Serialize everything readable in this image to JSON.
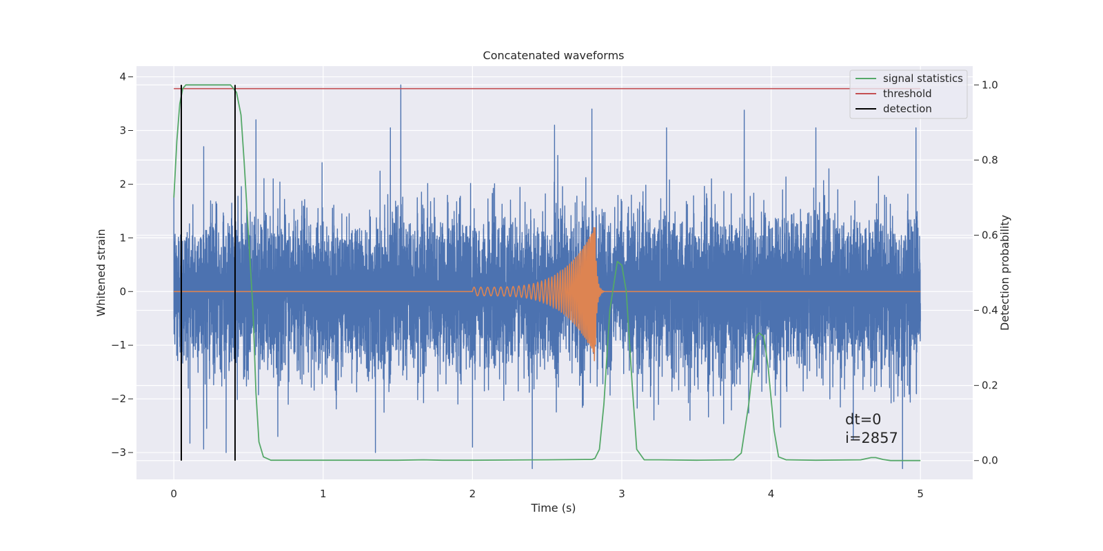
{
  "chart_data": {
    "type": "line",
    "title": "Concatenated waveforms",
    "xlabel": "Time (s)",
    "ylabel": "Whitened strain",
    "y2label": "Detection probability",
    "xlim": [
      -0.25,
      5.35
    ],
    "ylim": [
      -3.5,
      4.2
    ],
    "y2lim": [
      -0.05,
      1.05
    ],
    "xticks": [
      "0",
      "1",
      "2",
      "3",
      "4",
      "5"
    ],
    "yticks": [
      "−3",
      "−2",
      "−1",
      "0",
      "1",
      "2",
      "3",
      "4"
    ],
    "y2ticks": [
      "0.0",
      "0.2",
      "0.4",
      "0.6",
      "0.8",
      "1.0"
    ],
    "grid": true,
    "legend_position": "top-right",
    "legend": [
      {
        "label": "signal statistics",
        "color": "#55a868"
      },
      {
        "label": "threshold",
        "color": "#c44e52"
      },
      {
        "label": "detection",
        "color": "#000000"
      }
    ],
    "colors": {
      "noise": "#4c72b0",
      "waveform": "#dd8452",
      "signal_statistics": "#55a868",
      "threshold": "#c44e52",
      "detection": "#000000",
      "plot_background": "#eaeaf2",
      "grid": "#ffffff"
    },
    "series": [
      {
        "role": "noise",
        "axis": "left",
        "x_range": [
          0,
          5
        ],
        "sigma": 0.7,
        "peaks": [
          {
            "x": 0.0,
            "y": 1.75
          },
          {
            "x": 0.2,
            "y": 2.7
          },
          {
            "x": 0.55,
            "y": 3.2
          },
          {
            "x": 1.45,
            "y": 3.05
          },
          {
            "x": 1.52,
            "y": 3.85
          },
          {
            "x": 2.55,
            "y": 3.1
          },
          {
            "x": 2.8,
            "y": 3.4
          },
          {
            "x": 3.3,
            "y": 3.05
          },
          {
            "x": 3.82,
            "y": 3.38
          },
          {
            "x": 4.3,
            "y": 3.05
          },
          {
            "x": 4.97,
            "y": 3.05
          },
          {
            "x": 0.22,
            "y": -2.55
          },
          {
            "x": 0.35,
            "y": -3.0
          },
          {
            "x": 1.35,
            "y": -3.0
          },
          {
            "x": 2.0,
            "y": -2.9
          },
          {
            "x": 2.4,
            "y": -3.3
          },
          {
            "x": 4.55,
            "y": -2.75
          },
          {
            "x": 4.88,
            "y": -3.3
          }
        ]
      },
      {
        "role": "waveform",
        "axis": "left",
        "x_range": [
          0,
          5
        ],
        "chirp_start": 2.0,
        "merger": 2.82,
        "amp_start": 0.08,
        "amp_peak": 1.2,
        "amp_min": -1.3,
        "freq_start_hz": 22,
        "freq_end_hz": 120
      },
      {
        "name": "signal statistics",
        "axis": "right",
        "x": [
          0.0,
          0.02,
          0.04,
          0.06,
          0.08,
          0.1,
          0.2,
          0.3,
          0.38,
          0.42,
          0.45,
          0.47,
          0.5,
          0.53,
          0.55,
          0.57,
          0.6,
          0.65,
          0.75,
          1.0,
          1.5,
          1.67,
          1.8,
          2.0,
          2.5,
          2.75,
          2.8,
          2.82,
          2.85,
          2.88,
          2.92,
          2.97,
          3.0,
          3.03,
          3.07,
          3.1,
          3.15,
          3.25,
          3.5,
          3.75,
          3.8,
          3.85,
          3.9,
          3.92,
          3.95,
          3.98,
          4.02,
          4.05,
          4.1,
          4.3,
          4.6,
          4.67,
          4.7,
          4.75,
          4.8,
          5.0
        ],
        "y": [
          0.7,
          0.85,
          0.95,
          0.99,
          1.0,
          1.0,
          1.0,
          1.0,
          1.0,
          0.98,
          0.92,
          0.8,
          0.6,
          0.4,
          0.18,
          0.05,
          0.01,
          0.001,
          0.001,
          0.001,
          0.001,
          0.002,
          0.001,
          0.001,
          0.002,
          0.003,
          0.003,
          0.006,
          0.03,
          0.15,
          0.4,
          0.53,
          0.52,
          0.45,
          0.2,
          0.03,
          0.002,
          0.002,
          0.001,
          0.002,
          0.02,
          0.15,
          0.33,
          0.34,
          0.33,
          0.25,
          0.08,
          0.01,
          0.002,
          0.001,
          0.002,
          0.008,
          0.008,
          0.003,
          0.0,
          0.0
        ]
      },
      {
        "name": "threshold",
        "axis": "right",
        "x": [
          0,
          5
        ],
        "y": [
          0.99,
          0.99
        ]
      },
      {
        "name": "detection",
        "axis": "right",
        "type": "vlines",
        "x": [
          0.05,
          0.41
        ],
        "ymin": 0,
        "ymax": 1.0
      }
    ],
    "annotations": [
      "dt=0",
      "i=2857"
    ],
    "annotation_anchor": {
      "x": 4.5,
      "y": -2.5
    }
  }
}
